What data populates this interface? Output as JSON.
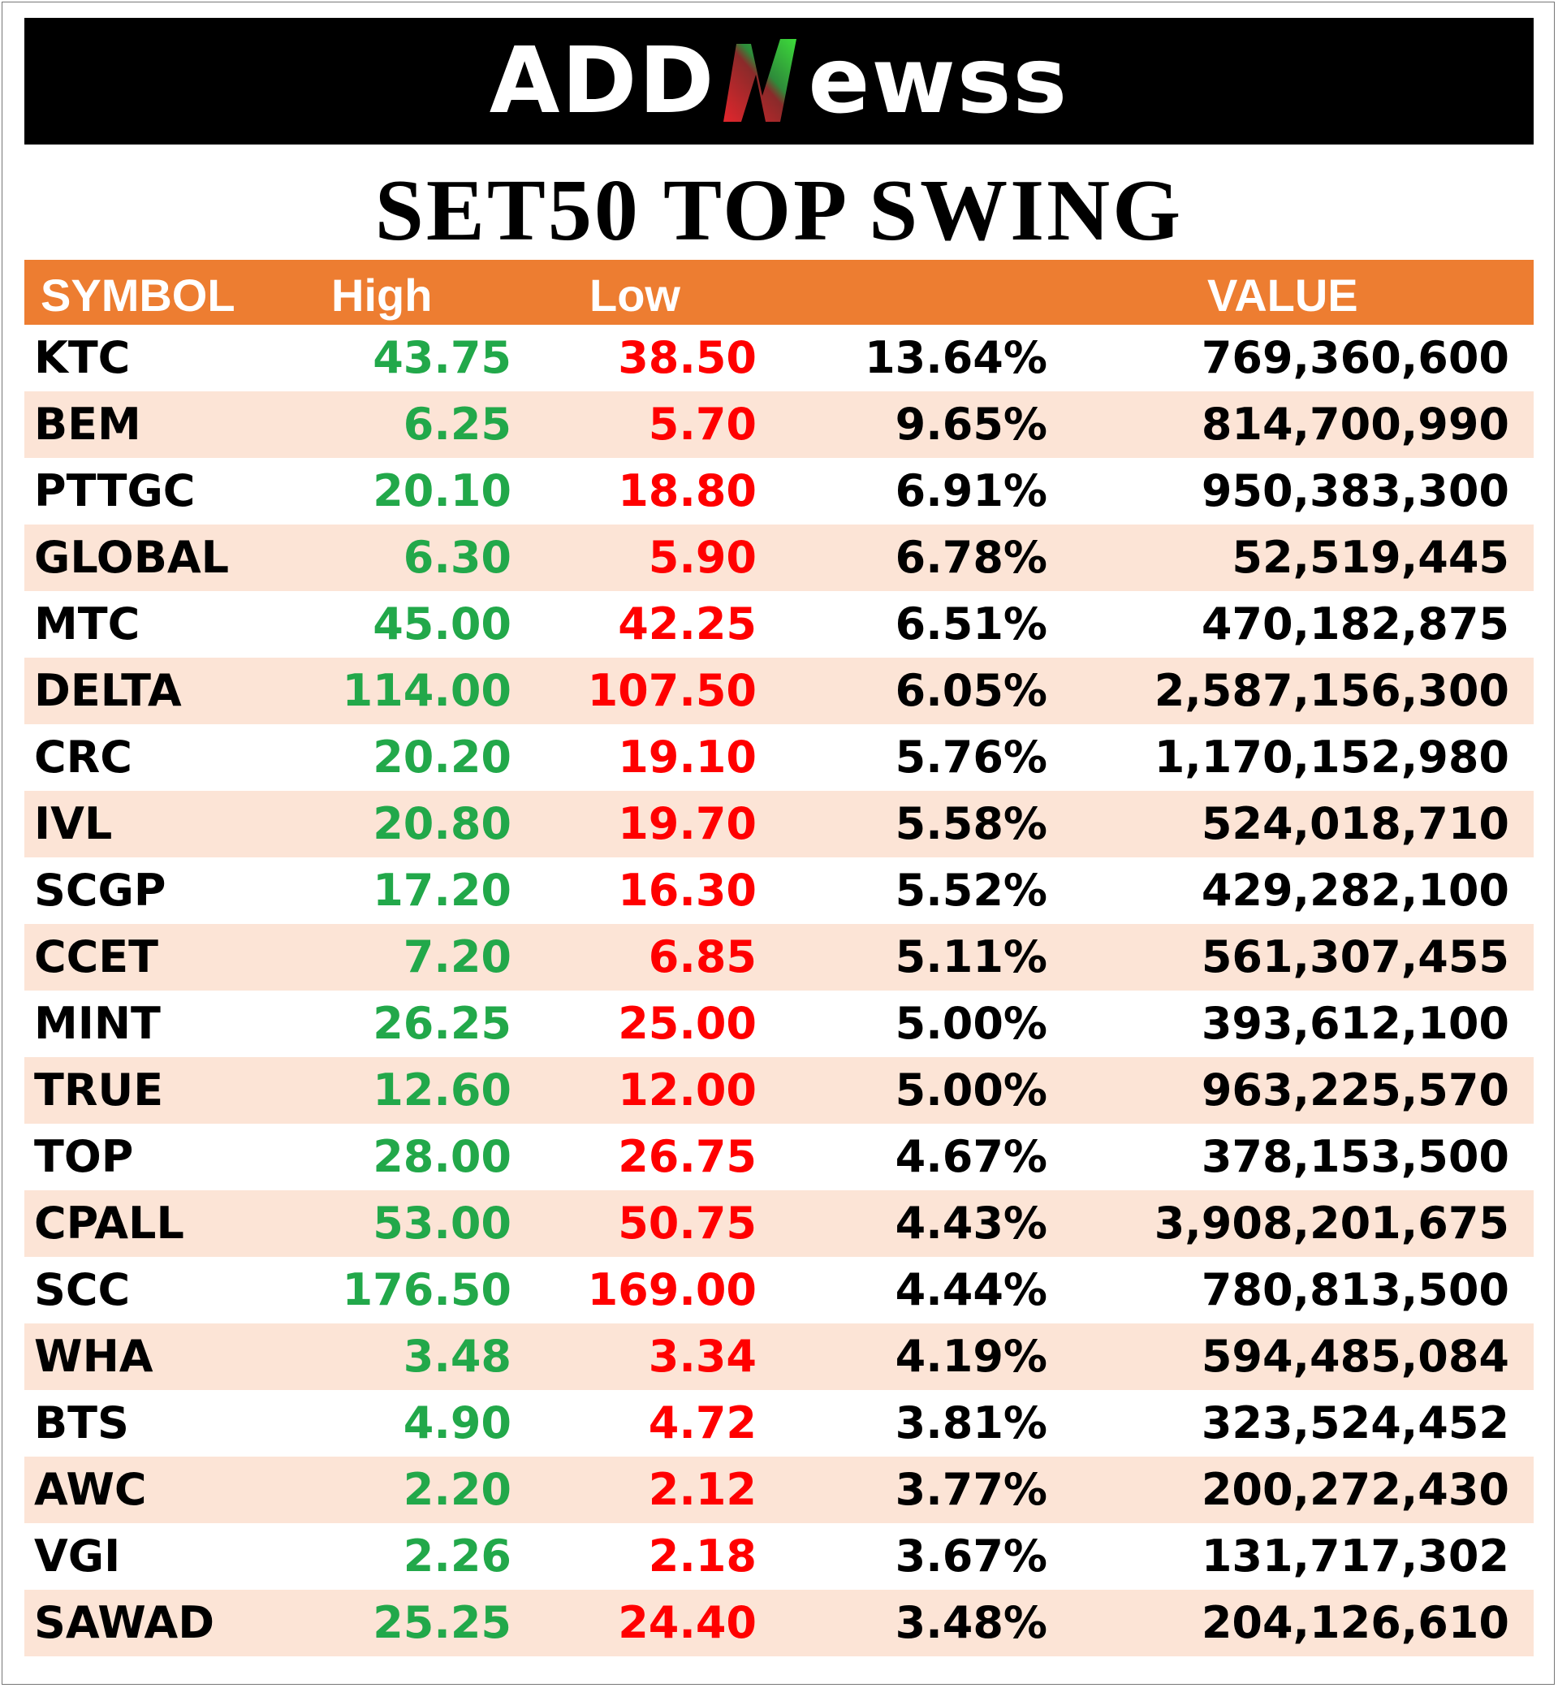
{
  "logo": {
    "part1": "ADD",
    "part2": "ewss"
  },
  "title": "SET50 TOP SWING",
  "headers": {
    "symbol": "SYMBOL",
    "high": "High",
    "low": "Low",
    "pct": "",
    "value": "VALUE"
  },
  "colors": {
    "header_bg": "#ED7D31",
    "shade": "#FCE4D6",
    "high": "#22A84A",
    "low": "#FF0000",
    "logo_bg": "#000000"
  },
  "rows": [
    {
      "symbol": "KTC",
      "high": "43.75",
      "low": "38.50",
      "pct": "13.64%",
      "value": "769,360,600"
    },
    {
      "symbol": "BEM",
      "high": "6.25",
      "low": "5.70",
      "pct": "9.65%",
      "value": "814,700,990"
    },
    {
      "symbol": "PTTGC",
      "high": "20.10",
      "low": "18.80",
      "pct": "6.91%",
      "value": "950,383,300"
    },
    {
      "symbol": "GLOBAL",
      "high": "6.30",
      "low": "5.90",
      "pct": "6.78%",
      "value": "52,519,445"
    },
    {
      "symbol": "MTC",
      "high": "45.00",
      "low": "42.25",
      "pct": "6.51%",
      "value": "470,182,875"
    },
    {
      "symbol": "DELTA",
      "high": "114.00",
      "low": "107.50",
      "pct": "6.05%",
      "value": "2,587,156,300"
    },
    {
      "symbol": "CRC",
      "high": "20.20",
      "low": "19.10",
      "pct": "5.76%",
      "value": "1,170,152,980"
    },
    {
      "symbol": "IVL",
      "high": "20.80",
      "low": "19.70",
      "pct": "5.58%",
      "value": "524,018,710"
    },
    {
      "symbol": "SCGP",
      "high": "17.20",
      "low": "16.30",
      "pct": "5.52%",
      "value": "429,282,100"
    },
    {
      "symbol": "CCET",
      "high": "7.20",
      "low": "6.85",
      "pct": "5.11%",
      "value": "561,307,455"
    },
    {
      "symbol": "MINT",
      "high": "26.25",
      "low": "25.00",
      "pct": "5.00%",
      "value": "393,612,100"
    },
    {
      "symbol": "TRUE",
      "high": "12.60",
      "low": "12.00",
      "pct": "5.00%",
      "value": "963,225,570"
    },
    {
      "symbol": "TOP",
      "high": "28.00",
      "low": "26.75",
      "pct": "4.67%",
      "value": "378,153,500"
    },
    {
      "symbol": "CPALL",
      "high": "53.00",
      "low": "50.75",
      "pct": "4.43%",
      "value": "3,908,201,675"
    },
    {
      "symbol": "SCC",
      "high": "176.50",
      "low": "169.00",
      "pct": "4.44%",
      "value": "780,813,500"
    },
    {
      "symbol": "WHA",
      "high": "3.48",
      "low": "3.34",
      "pct": "4.19%",
      "value": "594,485,084"
    },
    {
      "symbol": "BTS",
      "high": "4.90",
      "low": "4.72",
      "pct": "3.81%",
      "value": "323,524,452"
    },
    {
      "symbol": "AWC",
      "high": "2.20",
      "low": "2.12",
      "pct": "3.77%",
      "value": "200,272,430"
    },
    {
      "symbol": "VGI",
      "high": "2.26",
      "low": "2.18",
      "pct": "3.67%",
      "value": "131,717,302"
    },
    {
      "symbol": "SAWAD",
      "high": "25.25",
      "low": "24.40",
      "pct": "3.48%",
      "value": "204,126,610"
    }
  ]
}
